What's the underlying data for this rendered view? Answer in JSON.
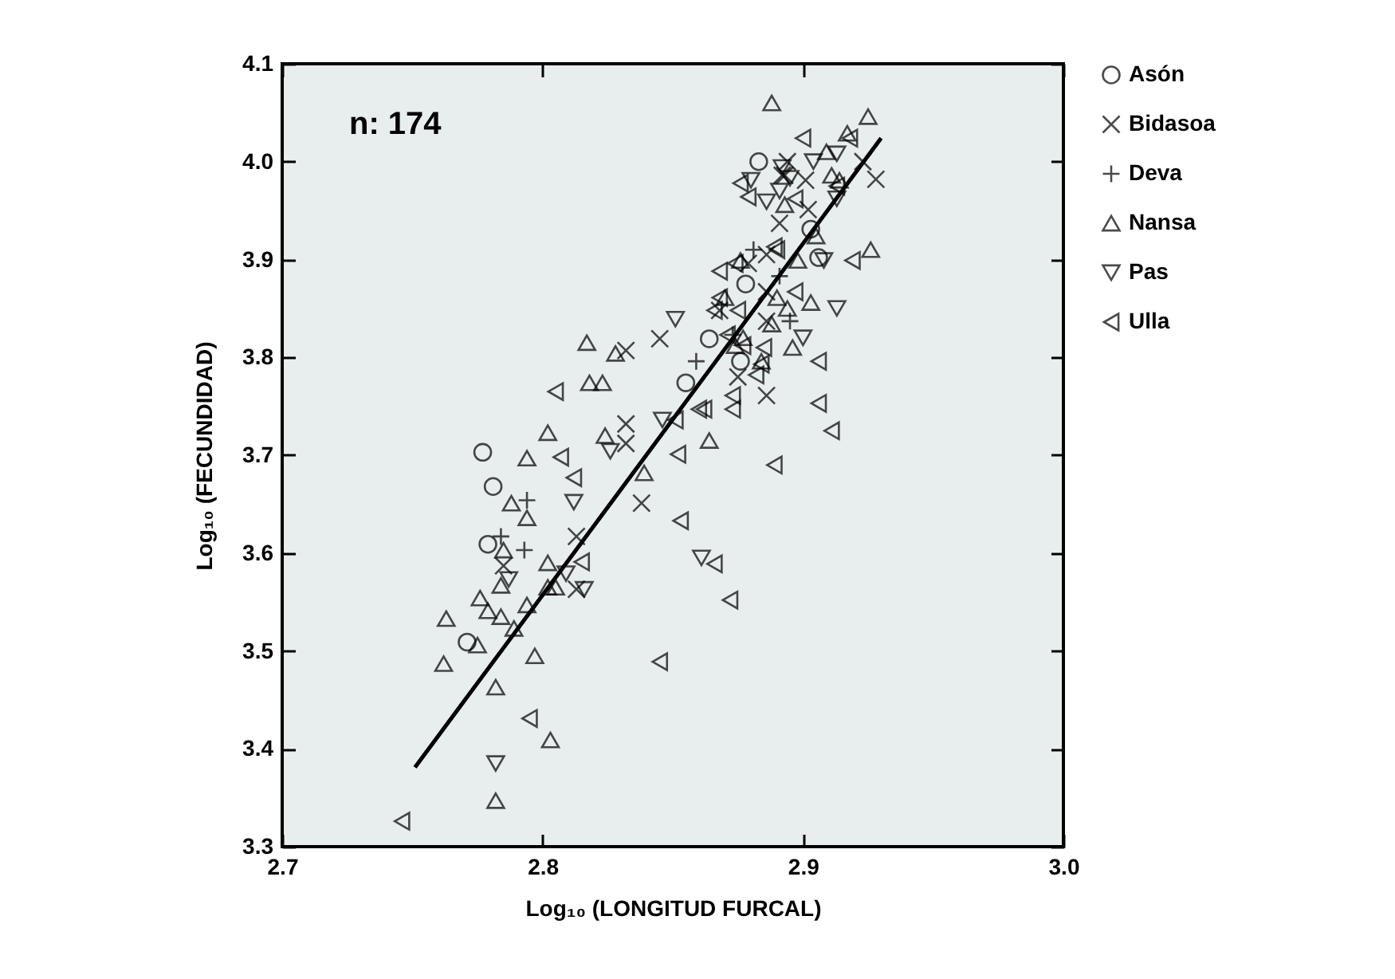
{
  "chart_data": {
    "type": "scatter",
    "xlabel": "Log₁₀ (LONGITUD FURCAL)",
    "ylabel": "Log₁₀ (FECUNDIDAD)",
    "annotations": [
      "n: 174"
    ],
    "xlim": [
      2.7,
      3.0
    ],
    "ylim": [
      3.3,
      4.1
    ],
    "xticks": [
      2.7,
      2.8,
      2.9,
      {
        "value": 3.0,
        "label": "3.0"
      }
    ],
    "yticks": [
      3.3,
      3.4,
      3.5,
      3.6,
      3.7,
      3.8,
      3.9,
      {
        "value": 4.0,
        "label": "4.0"
      },
      4.1
    ],
    "grid": false,
    "legend": "top right",
    "series": [
      {
        "name": "Asón",
        "color": "#000000",
        "marker": "circle",
        "x": [
          2.777,
          2.883,
          2.878,
          2.864,
          2.903,
          2.906,
          2.855,
          2.876,
          2.781,
          2.779,
          2.771
        ],
        "values": [
          3.703,
          4.0,
          3.875,
          3.819,
          3.931,
          3.902,
          3.774,
          3.796,
          3.668,
          3.609,
          3.509
        ]
      },
      {
        "name": "Bidasoa",
        "color": "#000000",
        "marker": "x",
        "x": [
          2.832,
          2.845,
          2.832,
          2.832,
          2.928,
          2.923,
          2.886,
          2.875,
          2.886,
          2.902,
          2.892,
          2.891,
          2.894,
          2.893,
          2.901,
          2.886,
          2.879,
          2.868,
          2.886,
          2.838,
          2.813,
          2.785,
          2.813
        ],
        "values": [
          3.807,
          3.819,
          3.732,
          3.712,
          3.982,
          4.0,
          3.905,
          3.78,
          3.761,
          3.951,
          3.986,
          3.937,
          4.0,
          3.986,
          3.981,
          3.837,
          3.896,
          3.848,
          3.867,
          3.651,
          3.617,
          3.587,
          3.563
        ]
      },
      {
        "name": "Deva",
        "color": "#000000",
        "marker": "cross",
        "x": [
          2.881,
          2.891,
          2.895,
          2.859,
          2.873,
          2.794,
          2.784,
          2.793
        ],
        "values": [
          3.91,
          3.883,
          3.837,
          3.796,
          3.823,
          3.654,
          3.617,
          3.603
        ]
      },
      {
        "name": "Nansa",
        "color": "#000000",
        "marker": "triangle",
        "x": [
          2.817,
          2.828,
          2.818,
          2.823,
          2.802,
          2.794,
          2.824,
          2.888,
          2.925,
          2.917,
          2.926,
          2.909,
          2.903,
          2.898,
          2.89,
          2.888,
          2.896,
          2.864,
          2.894,
          2.893,
          2.911,
          2.914,
          2.905,
          2.876,
          2.874,
          2.877,
          2.884,
          2.87,
          2.788,
          2.794,
          2.785,
          2.802,
          2.784,
          2.776,
          2.779,
          2.784,
          2.794,
          2.789,
          2.763,
          2.775,
          2.762,
          2.797,
          2.782,
          2.803,
          2.782,
          2.839,
          2.802,
          2.805
        ],
        "values": [
          3.815,
          3.804,
          3.774,
          3.774,
          3.723,
          3.697,
          3.72,
          4.06,
          4.046,
          4.029,
          3.91,
          4.01,
          3.856,
          3.899,
          3.861,
          3.834,
          3.81,
          3.715,
          3.85,
          3.956,
          3.986,
          3.981,
          3.924,
          3.899,
          3.812,
          3.82,
          3.796,
          3.861,
          3.651,
          3.636,
          3.603,
          3.59,
          3.567,
          3.554,
          3.541,
          3.535,
          3.547,
          3.523,
          3.533,
          3.506,
          3.487,
          3.495,
          3.463,
          3.409,
          3.347,
          3.682,
          3.565,
          3.565
        ]
      },
      {
        "name": "Pas",
        "color": "#000000",
        "marker": "triangle-down",
        "x": [
          2.851,
          2.826,
          2.846,
          2.892,
          2.904,
          2.913,
          2.886,
          2.913,
          2.908,
          2.913,
          2.9,
          2.88,
          2.891,
          2.895,
          2.812,
          2.787,
          2.816,
          2.809,
          2.782,
          2.861
        ],
        "values": [
          3.839,
          3.704,
          3.736,
          3.994,
          4.0,
          4.008,
          3.959,
          3.962,
          3.899,
          3.85,
          3.82,
          3.981,
          3.97,
          3.983,
          3.652,
          3.573,
          3.563,
          3.579,
          3.385,
          3.595
        ]
      },
      {
        "name": "Ulla",
        "color": "#000000",
        "marker": "triangle-left",
        "x": [
          2.805,
          2.807,
          2.9,
          2.918,
          2.876,
          2.879,
          2.897,
          2.913,
          2.919,
          2.868,
          2.874,
          2.89,
          2.897,
          2.868,
          2.866,
          2.875,
          2.871,
          2.885,
          2.877,
          2.906,
          2.884,
          2.882,
          2.851,
          2.862,
          2.873,
          2.873,
          2.906,
          2.911,
          2.852,
          2.889,
          2.889,
          2.86,
          2.812,
          2.815,
          2.845,
          2.795,
          2.746,
          2.853,
          2.866,
          2.872
        ],
        "values": [
          3.765,
          3.698,
          4.024,
          4.024,
          3.978,
          3.964,
          3.962,
          3.975,
          3.899,
          3.888,
          3.896,
          3.91,
          3.867,
          3.861,
          3.848,
          3.848,
          3.823,
          3.81,
          3.812,
          3.796,
          3.793,
          3.782,
          3.736,
          3.747,
          3.761,
          3.747,
          3.753,
          3.725,
          3.701,
          3.69,
          3.913,
          3.747,
          3.677,
          3.591,
          3.489,
          3.431,
          3.326,
          3.633,
          3.589,
          3.552
        ]
      },
      {
        "type": "line",
        "color": "#000000",
        "x": [
          2.751,
          2.93
        ],
        "values": [
          3.381,
          4.024
        ]
      }
    ]
  }
}
